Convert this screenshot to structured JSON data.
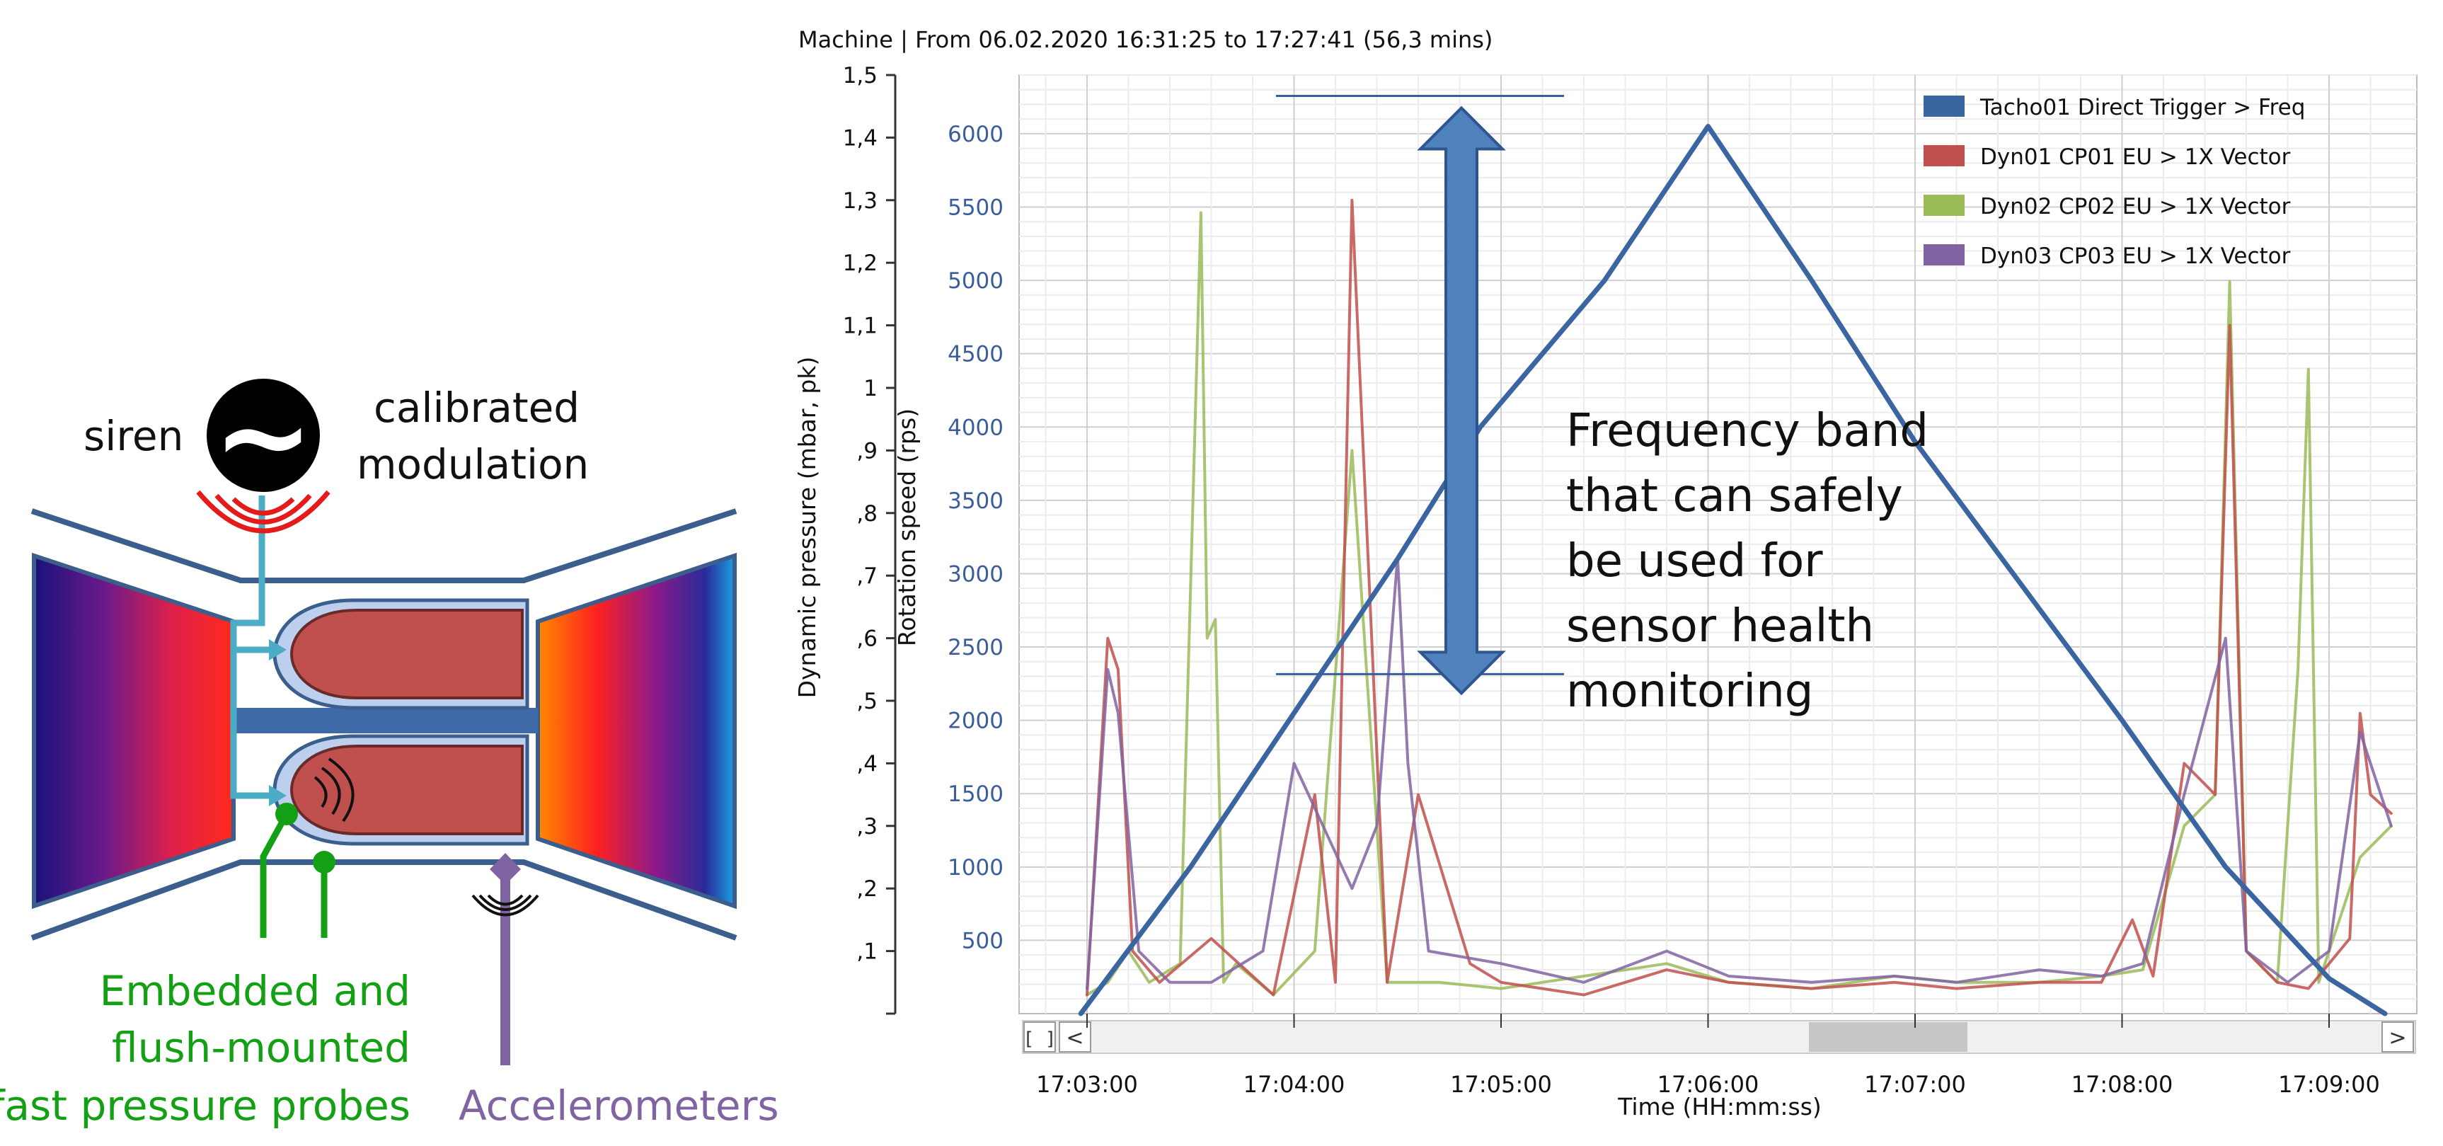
{
  "diagram": {
    "siren_label": "siren",
    "modulation_label_1": "calibrated",
    "modulation_label_2": "modulation",
    "probes_label_1": "Embedded and",
    "probes_label_2": "flush-mounted",
    "probes_label_3": "fast pressure probes",
    "accel_label": "Accelerometers",
    "siren_symbol": "~",
    "colors": {
      "casing": "#3b5e8c",
      "siren_waves": "#e31b1b",
      "feed_line": "#4bacc6",
      "probes": "#14a014",
      "accelerometer": "#8064a2",
      "combustor_fill": "#c0504d",
      "combustor_liner": "#bcd0ee",
      "shaft": "#3f6aa8"
    }
  },
  "header": {
    "title": "Machine | From 06.02.2020 16:31:25 to 17:27:41 (56,3 mins)"
  },
  "annotation": {
    "line1": "Frequency band",
    "line2": "that can safely",
    "line3": "be used for",
    "line4": "sensor health",
    "line5": "monitoring",
    "band_rps": [
      2450,
      6200
    ],
    "arrow_color": "#4f81bd"
  },
  "scrollbar": {
    "fit_icon": "[ ]",
    "left_icon": "<",
    "right_icon": ">"
  },
  "chart_data": {
    "type": "line",
    "xlabel": "Time (HH:mm:ss)",
    "y_left_label": "Dynamic pressure (mbar, pk)",
    "y_right_label": "Rotation speed (rps)",
    "x_ticks": [
      "17:03:00",
      "17:04:00",
      "17:05:00",
      "17:06:00",
      "17:07:00",
      "17:08:00",
      "17:09:00"
    ],
    "x_range_min": [
      -0.045,
      6.3
    ],
    "y_left_ticks": [
      ",1",
      ",2",
      ",3",
      ",4",
      ",5",
      ",6",
      ",7",
      ",8",
      ",9",
      "1",
      "1,1",
      "1,2",
      "1,3",
      "1,4",
      "1,5"
    ],
    "y_left_range": [
      0,
      1.5
    ],
    "y_right_ticks": [
      500,
      1000,
      1500,
      2000,
      2500,
      3000,
      3500,
      4000,
      4500,
      5000,
      5500,
      6000
    ],
    "y_right_range": [
      0,
      6400
    ],
    "grid": true,
    "legend_position": "top-right",
    "series": [
      {
        "name": "Tacho01 Direct Trigger > Freq",
        "axis": "right",
        "color": "#3b65a0",
        "x": [
          -0.03,
          0.5,
          1.0,
          1.5,
          1.9,
          2.5,
          3.0,
          3.5,
          4.0,
          4.5,
          5.0,
          5.5,
          6.0,
          6.27
        ],
        "y": [
          0,
          1000,
          2050,
          3100,
          4000,
          5000,
          6050,
          5000,
          3900,
          2950,
          2000,
          1000,
          240,
          0
        ]
      },
      {
        "name": "Dyn01 CP01 EU > 1X Vector",
        "axis": "left",
        "color": "#c0504d",
        "x": [
          0.0,
          0.1,
          0.15,
          0.22,
          0.35,
          0.6,
          0.9,
          1.1,
          1.2,
          1.28,
          1.45,
          1.6,
          1.85,
          2.0,
          2.4,
          2.8,
          3.1,
          3.5,
          3.9,
          4.2,
          4.6,
          4.9,
          5.05,
          5.15,
          5.3,
          5.45,
          5.52,
          5.6,
          5.75,
          5.9,
          6.1,
          6.15,
          6.2,
          6.3
        ],
        "y": [
          0.03,
          0.6,
          0.55,
          0.1,
          0.05,
          0.12,
          0.03,
          0.35,
          0.05,
          1.3,
          0.05,
          0.35,
          0.08,
          0.05,
          0.03,
          0.07,
          0.05,
          0.04,
          0.05,
          0.04,
          0.05,
          0.05,
          0.15,
          0.06,
          0.4,
          0.35,
          1.1,
          0.1,
          0.05,
          0.04,
          0.12,
          0.48,
          0.35,
          0.32
        ]
      },
      {
        "name": "Dyn02 CP02 EU > 1X Vector",
        "axis": "left",
        "color": "#9bbb59",
        "x": [
          0.0,
          0.1,
          0.2,
          0.3,
          0.45,
          0.55,
          0.58,
          0.62,
          0.66,
          0.72,
          0.9,
          1.1,
          1.28,
          1.45,
          1.7,
          2.0,
          2.4,
          2.8,
          3.1,
          3.5,
          3.9,
          4.2,
          4.6,
          4.9,
          5.1,
          5.3,
          5.45,
          5.52,
          5.6,
          5.75,
          5.85,
          5.9,
          5.95,
          6.15,
          6.3
        ],
        "y": [
          0.03,
          0.05,
          0.1,
          0.05,
          0.08,
          1.28,
          0.6,
          0.63,
          0.05,
          0.08,
          0.03,
          0.1,
          0.9,
          0.05,
          0.05,
          0.04,
          0.06,
          0.08,
          0.05,
          0.04,
          0.06,
          0.05,
          0.05,
          0.06,
          0.07,
          0.3,
          0.35,
          1.17,
          0.1,
          0.05,
          0.55,
          1.03,
          0.05,
          0.25,
          0.3
        ]
      },
      {
        "name": "Dyn03 CP03 EU > 1X Vector",
        "axis": "left",
        "color": "#8064a2",
        "x": [
          0.0,
          0.1,
          0.15,
          0.25,
          0.4,
          0.6,
          0.85,
          1.0,
          1.28,
          1.4,
          1.5,
          1.55,
          1.65,
          2.0,
          2.4,
          2.8,
          3.1,
          3.5,
          3.9,
          4.2,
          4.6,
          4.9,
          5.1,
          5.3,
          5.5,
          5.6,
          5.8,
          6.0,
          6.15,
          6.3
        ],
        "y": [
          0.04,
          0.55,
          0.48,
          0.1,
          0.05,
          0.05,
          0.1,
          0.4,
          0.2,
          0.3,
          0.73,
          0.4,
          0.1,
          0.08,
          0.05,
          0.1,
          0.06,
          0.05,
          0.06,
          0.05,
          0.07,
          0.06,
          0.08,
          0.35,
          0.6,
          0.1,
          0.05,
          0.1,
          0.45,
          0.3
        ]
      }
    ]
  }
}
